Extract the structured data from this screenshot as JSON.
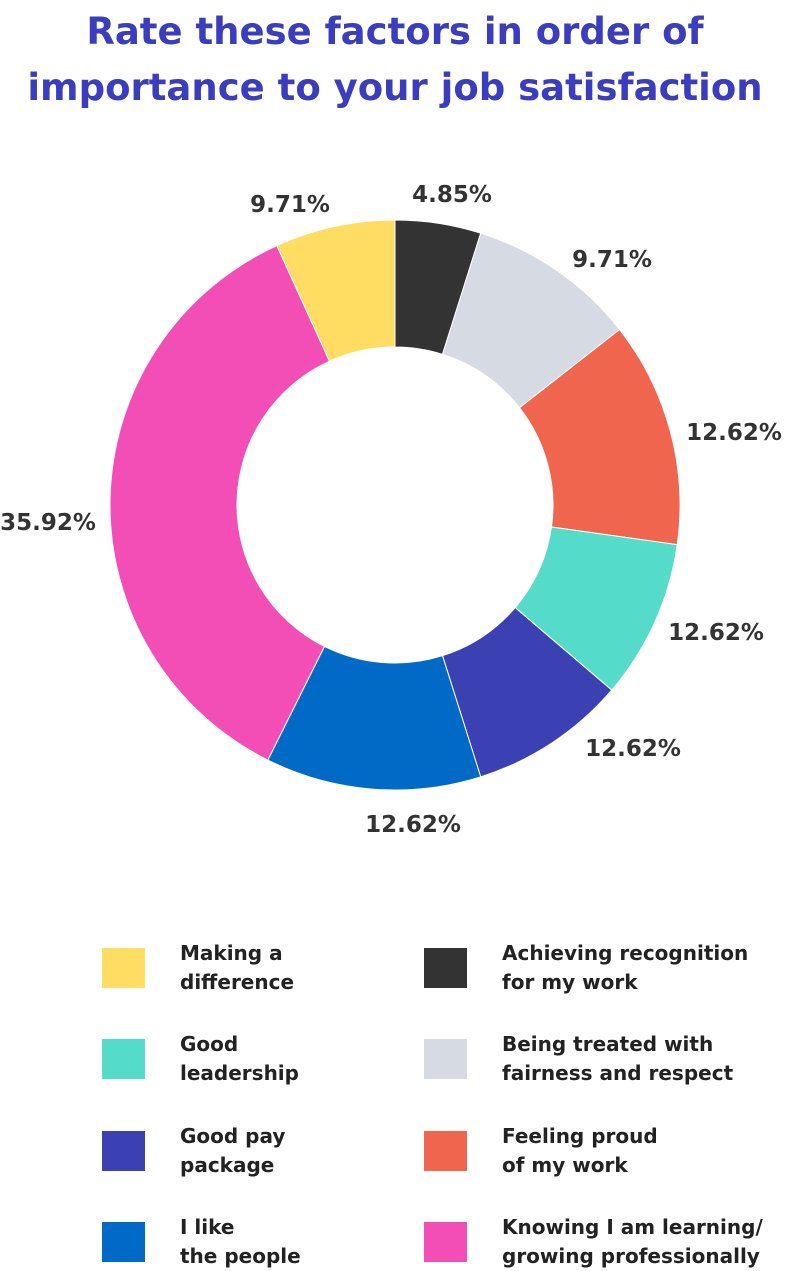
{
  "title": {
    "line1": "Rate these factors in order of",
    "line2": "importance to your job satisfaction"
  },
  "chart_data": {
    "type": "pie",
    "donut": true,
    "slices": [
      {
        "label": "Achieving recognition\nfor my work",
        "value_label": "4.85%",
        "value": 4.85,
        "color": "#333333"
      },
      {
        "label": "Being treated with\nfairness and respect",
        "value_label": "9.71%",
        "value": 9.71,
        "color": "#d6dbe3"
      },
      {
        "label": "Feeling proud\nof my work",
        "value_label": "12.62%",
        "value": 12.62,
        "color": "#ef654d"
      },
      {
        "label": "Good\nleadership",
        "value_label": "12.62%",
        "value": 12.62,
        "color": "#55dbc9"
      },
      {
        "label": "Good pay\npackage",
        "value_label": "12.62%",
        "value": 12.62,
        "color": "#3b40b3"
      },
      {
        "label": "I like\nthe people",
        "value_label": "12.62%",
        "value": 12.62,
        "color": "#006ac6"
      },
      {
        "label": "Knowing I am learning/\ngrowing professionally",
        "value_label": "35.92%",
        "value": 35.92,
        "color": "#f24eb6"
      },
      {
        "label": "Making a\ndifference",
        "value_label": "9.71%",
        "value": 9.71,
        "color": "#ffdc62"
      }
    ],
    "legend": {
      "position": "bottom",
      "order": [
        7,
        0,
        3,
        1,
        4,
        2,
        5,
        6
      ]
    }
  }
}
